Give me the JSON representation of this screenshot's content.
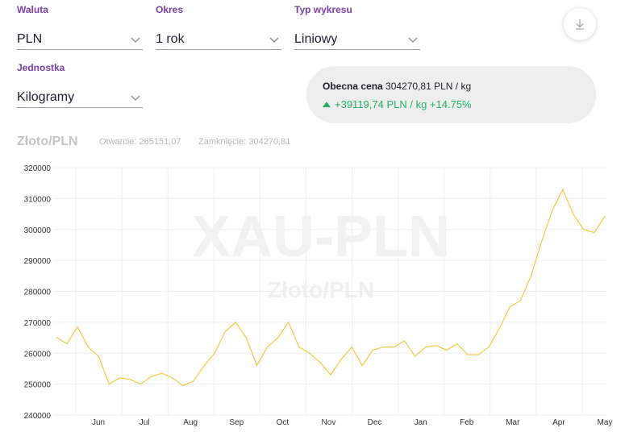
{
  "controls": {
    "currency": {
      "label": "Waluta",
      "value": "PLN"
    },
    "period": {
      "label": "Okres",
      "value": "1 rok"
    },
    "chart_type": {
      "label": "Typ wykresu",
      "value": "Liniowy"
    },
    "unit": {
      "label": "Jednostka",
      "value": "Kilogramy"
    },
    "download_icon": "download-icon"
  },
  "price": {
    "current_label": "Obecna cena",
    "current_value": "304270,81 PLN / kg",
    "change": "+39119,74 PLN / kg +14.75%",
    "change_color": "#27ae60"
  },
  "chart_header": {
    "title": "Złoto/PLN",
    "open": "Otwarcie: 265151,07",
    "close": "Zamknięcie: 304270,81"
  },
  "chart_data": {
    "type": "line",
    "watermark": "XAU-PLN",
    "watermark_sub": "Złoto/PLN",
    "ylim": [
      240000,
      320000
    ],
    "y_ticks": [
      "320000",
      "310000",
      "300000",
      "290000",
      "280000",
      "270000",
      "260000",
      "250000",
      "240000"
    ],
    "x_ticks": [
      "Jun",
      "Jul",
      "Aug",
      "Sep",
      "Oct",
      "Nov",
      "Dec",
      "Jan",
      "Feb",
      "Mar",
      "Apr",
      "May"
    ],
    "line_color": "#f5c842",
    "grid": true,
    "series": [
      {
        "x": [
          "2023-05-05",
          "2023-05-12",
          "2023-05-19",
          "2023-05-26",
          "2023-06-02",
          "2023-06-09",
          "2023-06-16",
          "2023-06-23",
          "2023-06-30",
          "2023-07-07",
          "2023-07-14",
          "2023-07-21",
          "2023-07-28",
          "2023-08-04",
          "2023-08-11",
          "2023-08-18",
          "2023-08-25",
          "2023-09-01",
          "2023-09-08",
          "2023-09-15",
          "2023-09-22",
          "2023-09-29",
          "2023-10-06",
          "2023-10-13",
          "2023-10-20",
          "2023-10-27",
          "2023-11-03",
          "2023-11-10",
          "2023-11-17",
          "2023-11-24",
          "2023-12-01",
          "2023-12-08",
          "2023-12-15",
          "2023-12-22",
          "2023-12-29",
          "2024-01-05",
          "2024-01-12",
          "2024-01-19",
          "2024-01-26",
          "2024-02-02",
          "2024-02-09",
          "2024-02-16",
          "2024-02-23",
          "2024-03-01",
          "2024-03-08",
          "2024-03-15",
          "2024-03-22",
          "2024-03-29",
          "2024-04-05",
          "2024-04-12",
          "2024-04-19",
          "2024-04-26",
          "2024-05-03"
        ],
        "values": [
          265151,
          263000,
          268500,
          262000,
          259000,
          250000,
          252000,
          251500,
          250000,
          252500,
          253500,
          252000,
          249500,
          251000,
          256000,
          260000,
          267000,
          270000,
          265000,
          256000,
          262000,
          265000,
          270000,
          262000,
          260000,
          257000,
          253000,
          258000,
          262000,
          256000,
          261000,
          262000,
          262000,
          264000,
          259000,
          262000,
          262500,
          261000,
          263000,
          259500,
          259500,
          262000,
          268000,
          275000,
          277000,
          285000,
          296000,
          306000,
          313000,
          305000,
          300000,
          299000,
          304270
        ]
      }
    ]
  }
}
